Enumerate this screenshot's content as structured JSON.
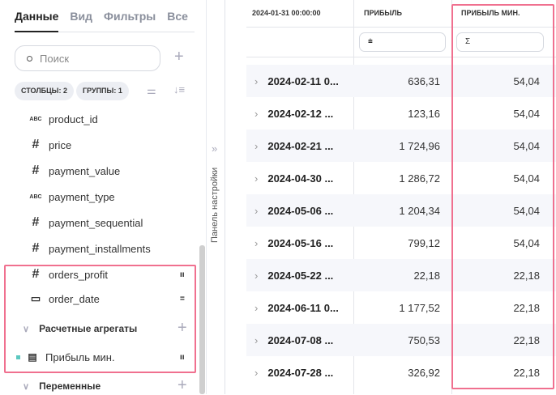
{
  "tabs": [
    "Данные",
    "Вид",
    "Фильтры",
    "Все"
  ],
  "search": {
    "placeholder": "Поиск"
  },
  "chips": {
    "columns": "СТОЛБЦЫ: 2",
    "groups": "ГРУППЫ: 1"
  },
  "fields": [
    {
      "type": "abc",
      "name": "product_id"
    },
    {
      "type": "hash",
      "name": "price"
    },
    {
      "type": "hash",
      "name": "payment_value"
    },
    {
      "type": "abc",
      "name": "payment_type"
    },
    {
      "type": "hash",
      "name": "payment_sequential"
    },
    {
      "type": "hash",
      "name": "payment_installments"
    },
    {
      "type": "hash",
      "name": "orders_profit"
    },
    {
      "type": "calendar",
      "name": "order_date"
    }
  ],
  "sections": {
    "calc": "Расчетные агрегаты",
    "calc_item": "Прибыль мин.",
    "vars": "Переменные"
  },
  "panel_label": "Панель настройки",
  "table": {
    "headers": [
      "2024-01-31 00:00:00",
      "ПРИБЫЛЬ",
      "ПРИБЫЛЬ МИН."
    ],
    "filters": [
      "⩧",
      "Σ"
    ],
    "rows": [
      [
        "2024-02-11 0...",
        "636,31",
        "54,04"
      ],
      [
        "2024-02-12 ...",
        "123,16",
        "54,04"
      ],
      [
        "2024-02-21 ...",
        "1 724,96",
        "54,04"
      ],
      [
        "2024-04-30 ...",
        "1 286,72",
        "54,04"
      ],
      [
        "2024-05-06 ...",
        "1 204,34",
        "54,04"
      ],
      [
        "2024-05-16 ...",
        "799,12",
        "54,04"
      ],
      [
        "2024-05-22 ...",
        "22,18",
        "22,18"
      ],
      [
        "2024-06-11 0...",
        "1 177,52",
        "22,18"
      ],
      [
        "2024-07-08 ...",
        "750,53",
        "22,18"
      ],
      [
        "2024-07-28 ...",
        "326,92",
        "22,18"
      ]
    ]
  },
  "colors": {
    "highlight": "#f0708f",
    "accent": "#5cc8c0"
  }
}
